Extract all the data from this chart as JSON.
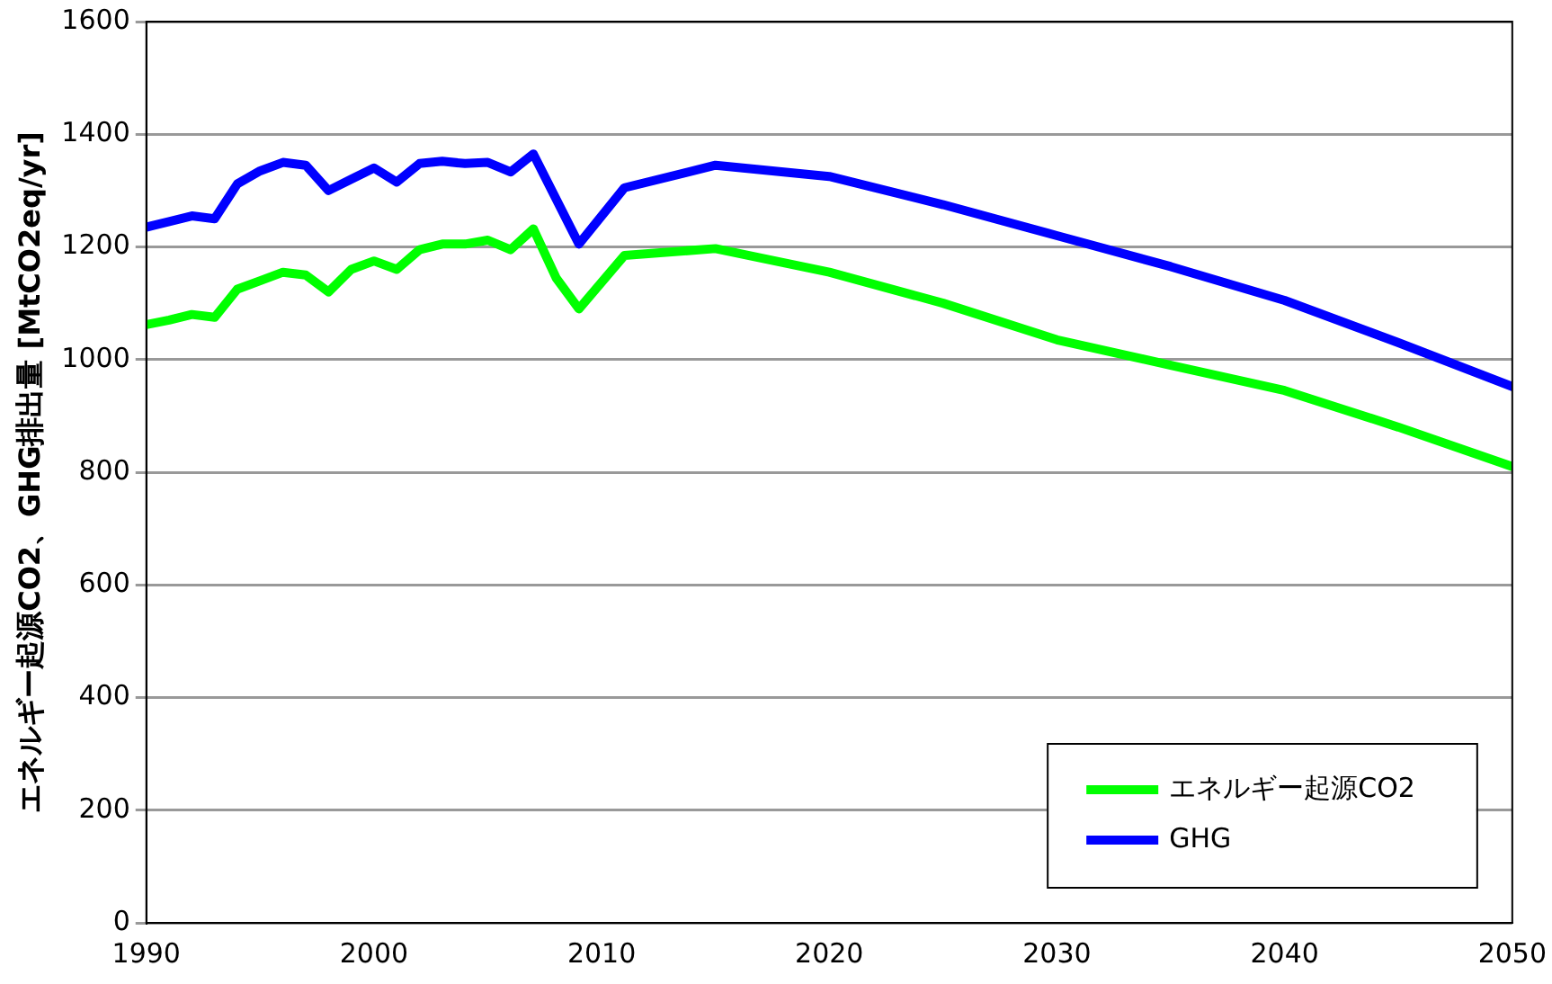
{
  "chart_data": {
    "type": "line",
    "ylabel": "エネルギー起源CO2、GHG排出量 [MtCO2eq/yr]",
    "x": [
      1990,
      1991,
      1992,
      1993,
      1994,
      1995,
      1996,
      1997,
      1998,
      1999,
      2000,
      2001,
      2002,
      2003,
      2004,
      2005,
      2006,
      2007,
      2008,
      2009,
      2011,
      2015,
      2020,
      2025,
      2030,
      2035,
      2040,
      2045,
      2050
    ],
    "series": [
      {
        "name": "エネルギー起源CO2",
        "color": "#00ff00",
        "values": [
          1062,
          1070,
          1080,
          1075,
          1125,
          1140,
          1155,
          1150,
          1120,
          1160,
          1175,
          1160,
          1195,
          1205,
          1205,
          1212,
          1195,
          1232,
          1145,
          1090,
          1185,
          1197,
          1155,
          1100,
          1035,
          990,
          945,
          880,
          810
        ]
      },
      {
        "name": "GHG",
        "color": "#0000ff",
        "values": [
          1235,
          1245,
          1255,
          1250,
          1312,
          1335,
          1350,
          1345,
          1300,
          1320,
          1340,
          1315,
          1348,
          1352,
          1348,
          1350,
          1333,
          1365,
          1285,
          1205,
          1305,
          1345,
          1325,
          1275,
          1220,
          1165,
          1105,
          1030,
          952
        ]
      }
    ],
    "xlim": [
      1990,
      2050
    ],
    "xticks": [
      1990,
      2000,
      2010,
      2020,
      2030,
      2040,
      2050
    ],
    "ylim": [
      0,
      1600
    ],
    "yticks": [
      0,
      200,
      400,
      600,
      800,
      1000,
      1200,
      1400,
      1600
    ],
    "grid": "y",
    "legend": "bottom right",
    "marker": "none",
    "line_style": "solid"
  }
}
